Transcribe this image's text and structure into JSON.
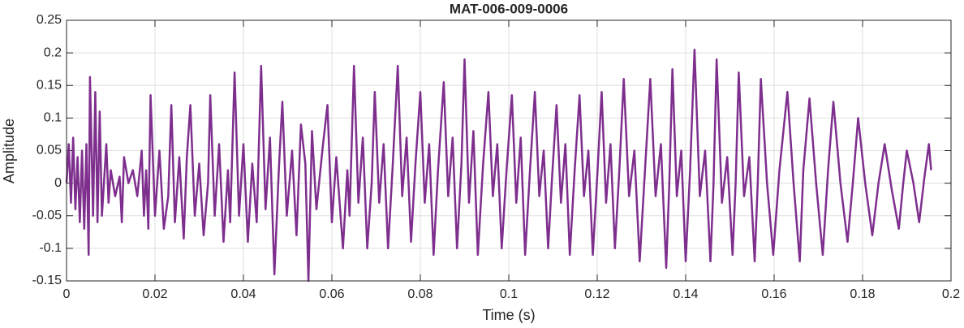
{
  "chart_data": {
    "type": "line",
    "title": "MAT-006-009-0006",
    "x_label": "Time (s)",
    "y_label": "Amplitude",
    "x": [
      0.0,
      0.0005,
      0.001,
      0.0015,
      0.002,
      0.0025,
      0.003,
      0.0035,
      0.004,
      0.0045,
      0.005,
      0.0053,
      0.006,
      0.0065,
      0.007,
      0.0075,
      0.008,
      0.009,
      0.0095,
      0.01,
      0.011,
      0.012,
      0.0125,
      0.013,
      0.014,
      0.015,
      0.016,
      0.017,
      0.0175,
      0.018,
      0.0185,
      0.019,
      0.02,
      0.021,
      0.022,
      0.023,
      0.0237,
      0.0245,
      0.0255,
      0.0265,
      0.0272,
      0.028,
      0.029,
      0.03,
      0.031,
      0.032,
      0.0325,
      0.0335,
      0.0345,
      0.0355,
      0.0365,
      0.037,
      0.038,
      0.039,
      0.04,
      0.041,
      0.042,
      0.043,
      0.044,
      0.045,
      0.046,
      0.047,
      0.048,
      0.0488,
      0.0498,
      0.051,
      0.052,
      0.053,
      0.054,
      0.0547,
      0.0555,
      0.0565,
      0.058,
      0.059,
      0.06,
      0.061,
      0.0625,
      0.0635,
      0.064,
      0.065,
      0.066,
      0.067,
      0.068,
      0.069,
      0.0697,
      0.0707,
      0.0717,
      0.0727,
      0.0737,
      0.0749,
      0.0759,
      0.0769,
      0.0779,
      0.0789,
      0.08,
      0.081,
      0.082,
      0.083,
      0.084,
      0.0853,
      0.0863,
      0.0873,
      0.0883,
      0.0893,
      0.09,
      0.091,
      0.092,
      0.093,
      0.0942,
      0.0954,
      0.0964,
      0.0974,
      0.0984,
      0.0995,
      0.1007,
      0.1017,
      0.1027,
      0.1037,
      0.1048,
      0.1059,
      0.1069,
      0.1079,
      0.1089,
      0.1098,
      0.1108,
      0.1118,
      0.1128,
      0.1138,
      0.1149,
      0.116,
      0.117,
      0.118,
      0.119,
      0.12,
      0.121,
      0.122,
      0.123,
      0.124,
      0.125,
      0.126,
      0.1272,
      0.1284,
      0.1296,
      0.1308,
      0.132,
      0.1332,
      0.1344,
      0.1356,
      0.1363,
      0.137,
      0.138,
      0.139,
      0.14,
      0.141,
      0.142,
      0.1432,
      0.1444,
      0.1456,
      0.1463,
      0.147,
      0.1482,
      0.1494,
      0.1506,
      0.1513,
      0.152,
      0.1532,
      0.1544,
      0.1556,
      0.1563,
      0.157,
      0.1584,
      0.1598,
      0.1612,
      0.163,
      0.1644,
      0.1658,
      0.1666,
      0.168,
      0.1695,
      0.171,
      0.1722,
      0.1734,
      0.175,
      0.1766,
      0.1778,
      0.179,
      0.1806,
      0.1822,
      0.1836,
      0.185,
      0.1866,
      0.1882,
      0.1892,
      0.19,
      0.1915,
      0.1928,
      0.194,
      0.195,
      0.1955
    ],
    "series": [
      {
        "color": "#7e2f8e",
        "values": [
          0.0,
          0.06,
          -0.03,
          0.07,
          -0.04,
          0.04,
          -0.06,
          0.05,
          -0.07,
          0.06,
          -0.11,
          0.163,
          -0.05,
          0.14,
          -0.06,
          0.11,
          -0.05,
          0.06,
          -0.03,
          0.02,
          -0.02,
          0.01,
          -0.06,
          0.04,
          0.0,
          0.02,
          -0.02,
          0.05,
          -0.05,
          0.02,
          -0.07,
          0.135,
          -0.05,
          0.05,
          -0.07,
          -0.02,
          0.12,
          -0.06,
          0.04,
          -0.085,
          0.04,
          0.12,
          -0.05,
          0.03,
          -0.08,
          0.0,
          0.135,
          -0.05,
          0.06,
          -0.09,
          0.02,
          -0.06,
          0.17,
          -0.05,
          0.06,
          -0.09,
          0.03,
          -0.06,
          0.18,
          -0.04,
          0.07,
          -0.14,
          0.02,
          0.125,
          -0.05,
          0.05,
          -0.08,
          0.09,
          0.03,
          -0.15,
          0.08,
          -0.04,
          0.06,
          0.12,
          -0.06,
          0.04,
          -0.1,
          0.02,
          -0.05,
          0.18,
          -0.03,
          0.07,
          -0.1,
          0.0,
          0.14,
          -0.03,
          0.06,
          -0.1,
          0.02,
          0.18,
          -0.02,
          0.07,
          -0.09,
          0.03,
          0.14,
          -0.03,
          0.06,
          -0.11,
          0.02,
          0.155,
          -0.02,
          0.07,
          -0.1,
          0.03,
          0.19,
          -0.03,
          0.08,
          -0.11,
          0.03,
          0.14,
          -0.02,
          0.06,
          -0.1,
          0.02,
          0.135,
          -0.03,
          0.07,
          -0.11,
          0.02,
          0.14,
          -0.02,
          0.05,
          -0.1,
          0.01,
          0.12,
          -0.03,
          0.06,
          -0.11,
          0.02,
          0.135,
          -0.02,
          0.05,
          -0.11,
          0.01,
          0.14,
          -0.03,
          0.06,
          -0.1,
          0.02,
          0.16,
          -0.02,
          0.05,
          -0.12,
          0.02,
          0.16,
          -0.02,
          0.06,
          -0.13,
          0.0,
          0.175,
          -0.02,
          0.05,
          -0.12,
          0.02,
          0.205,
          -0.02,
          0.05,
          -0.12,
          0.0,
          0.19,
          -0.03,
          0.04,
          -0.11,
          0.0,
          0.17,
          -0.02,
          0.04,
          -0.12,
          0.0,
          0.16,
          0.0,
          -0.11,
          0.02,
          0.14,
          0.0,
          -0.12,
          0.02,
          0.13,
          0.0,
          -0.11,
          0.02,
          0.125,
          0.0,
          -0.09,
          0.0,
          0.1,
          0.0,
          -0.08,
          0.0,
          0.06,
          -0.01,
          -0.07,
          0.0,
          0.05,
          0.0,
          -0.06,
          0.01,
          0.06,
          0.02
        ]
      }
    ],
    "xlim": [
      0,
      0.2
    ],
    "xticks": [
      0,
      0.02,
      0.04,
      0.06,
      0.08,
      0.1,
      0.12,
      0.14,
      0.16,
      0.18,
      0.2
    ],
    "ylim": [
      -0.15,
      0.25
    ],
    "yticks": [
      -0.15,
      -0.1,
      -0.05,
      0,
      0.05,
      0.1,
      0.15,
      0.2,
      0.25
    ],
    "grid": true
  }
}
